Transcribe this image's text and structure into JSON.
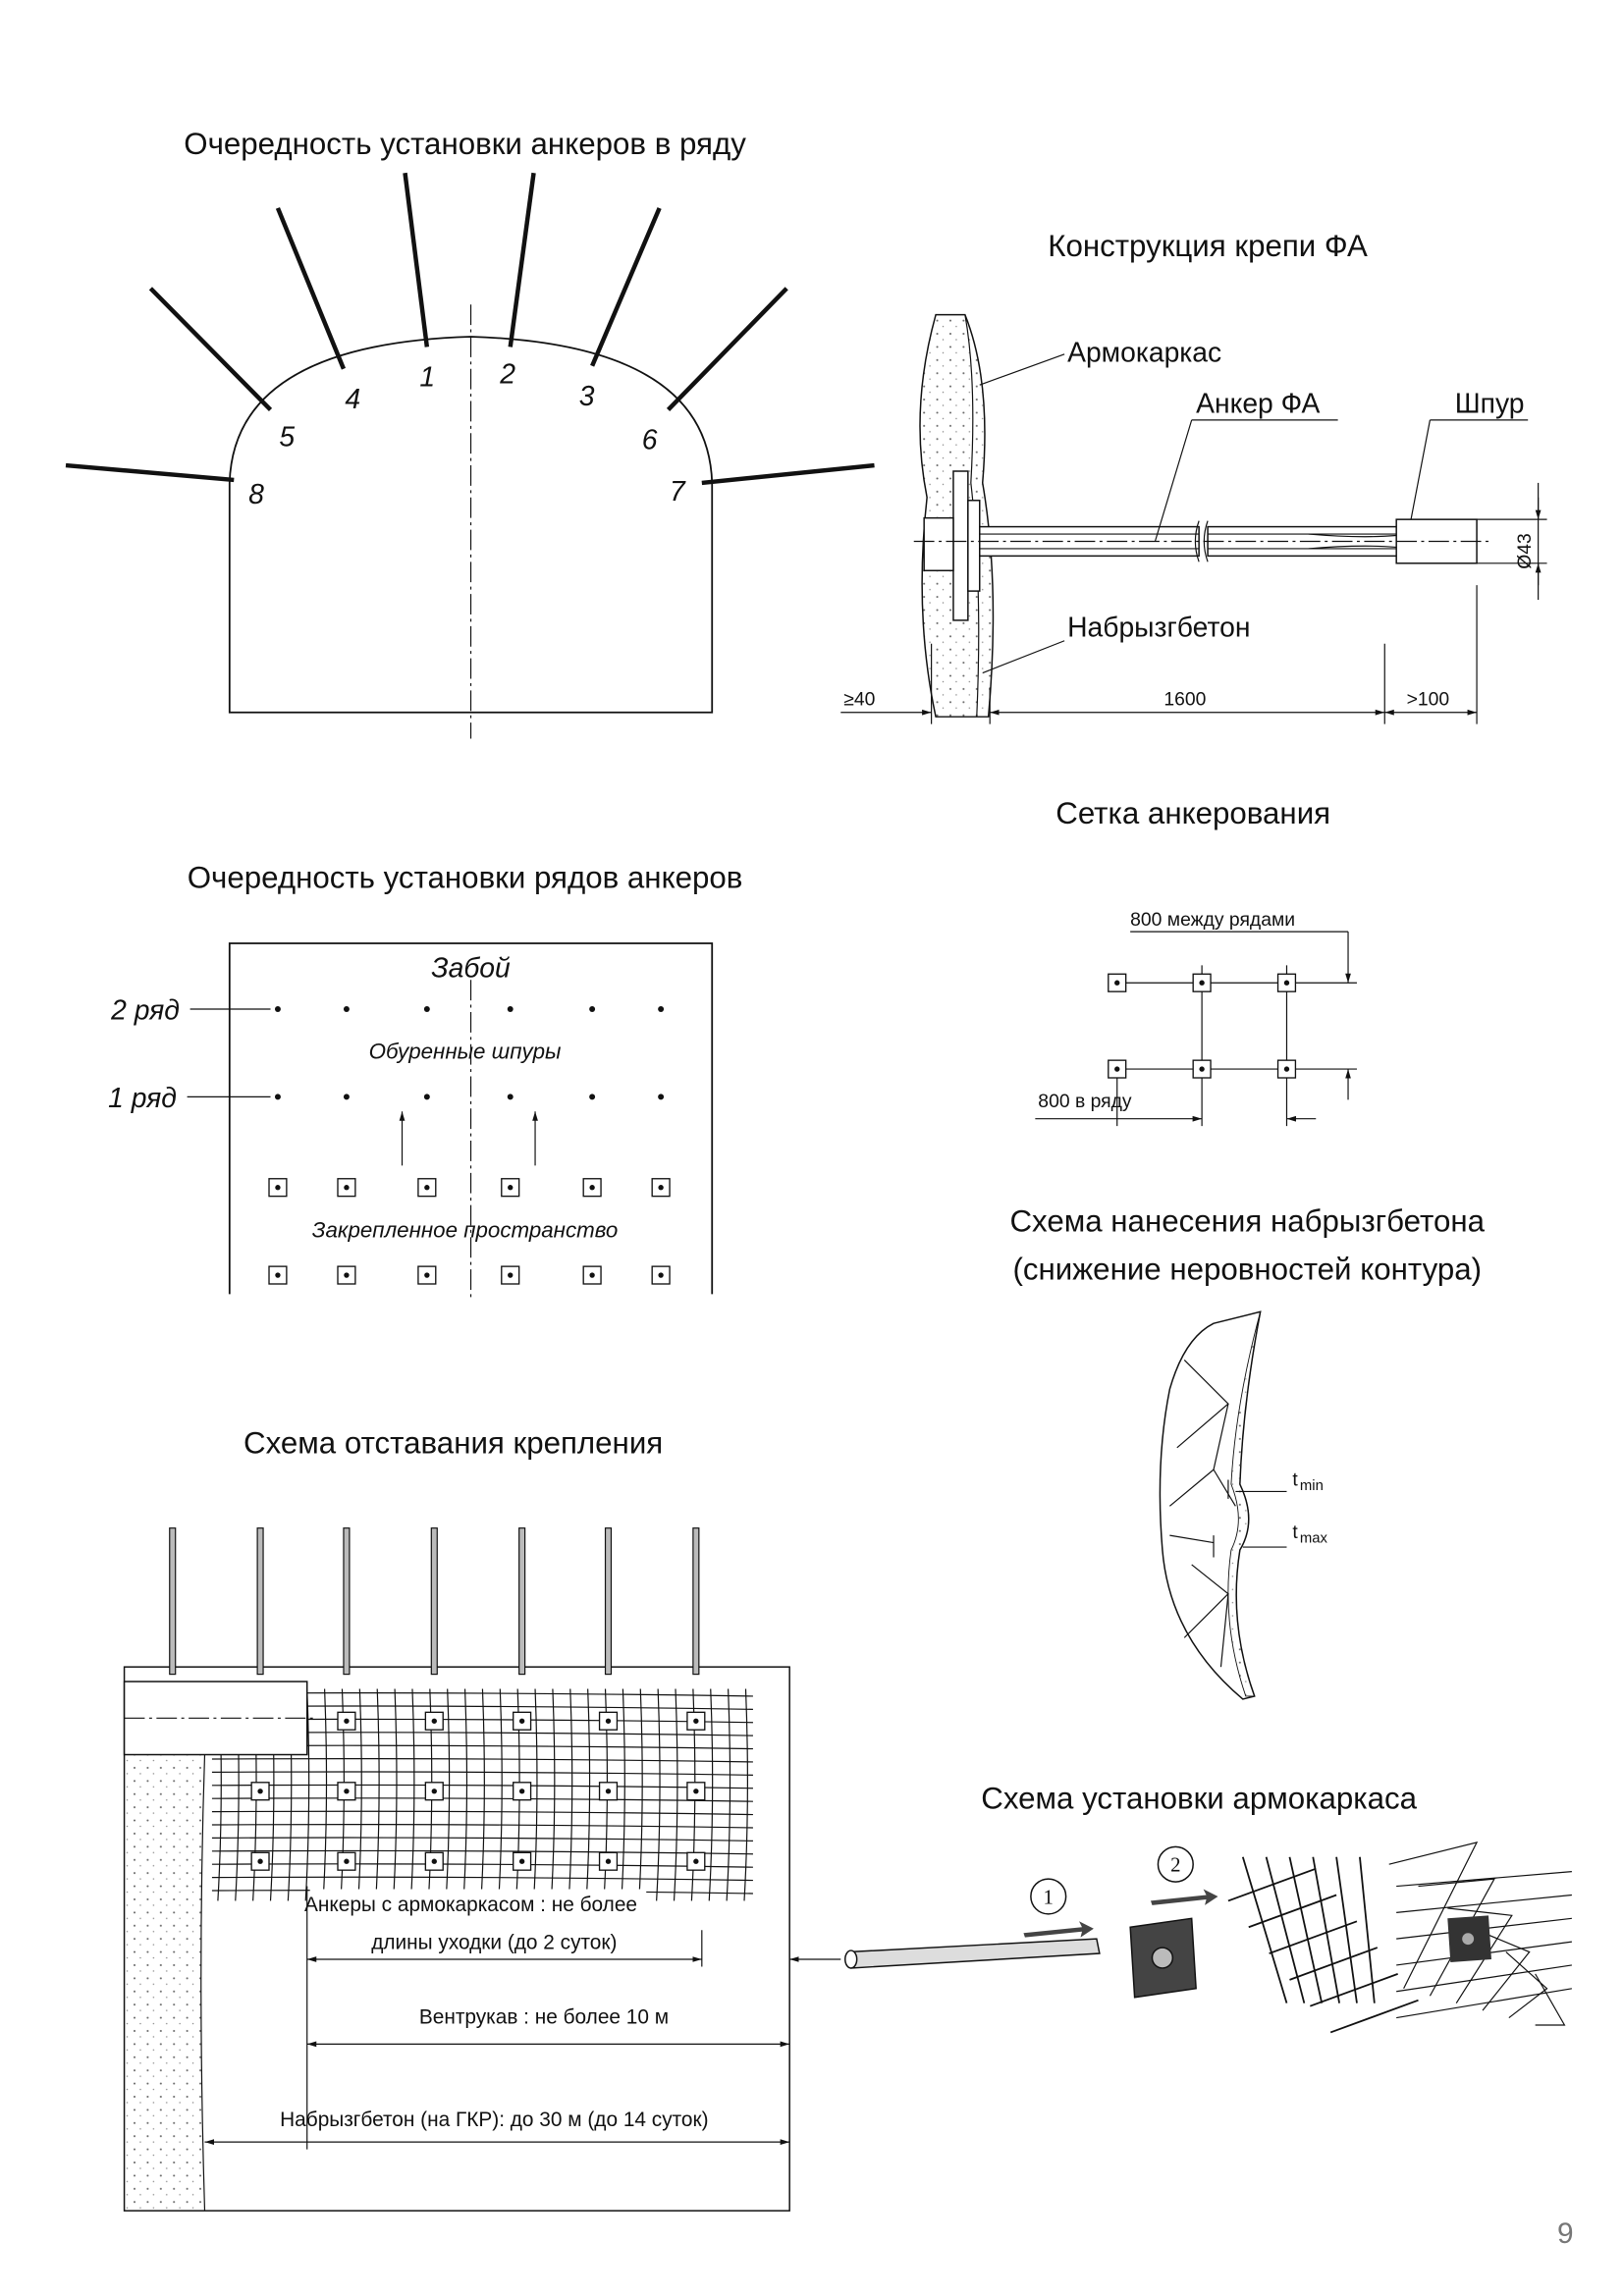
{
  "anchor_sequence_in_row": {
    "title": "Очередность установки анкеров в ряду",
    "numbers": [
      "1",
      "2",
      "3",
      "4",
      "5",
      "6",
      "7",
      "8"
    ]
  },
  "support_design": {
    "title": "Конструкция крепи ФА",
    "labels": {
      "mesh": "Армокаркас",
      "anchor": "Анкер ФА",
      "hole": "Шпур",
      "shotcrete": "Набрызгбетон"
    },
    "dimensions": {
      "diameter": "Ø43",
      "left": "≥40",
      "length": "1600",
      "right": ">100"
    }
  },
  "anchor_grid": {
    "title": "Сетка анкерования",
    "between_rows": "800 между рядами",
    "in_row": "800 в ряду"
  },
  "row_sequence": {
    "title": "Очередность установки рядов анкеров",
    "face": "Забой",
    "row2": "2 ряд",
    "row1": "1 ряд",
    "drilled": "Обуренные шпуры",
    "secured": "Закрепленное пространство"
  },
  "shotcrete_scheme": {
    "title_line1": "Схема нанесения набрызгбетона",
    "title_line2": "(снижение неровностей контура)",
    "t_min": {
      "symbol": "t",
      "index": "min"
    },
    "t_max": {
      "symbol": "t",
      "index": "max"
    }
  },
  "lag_scheme": {
    "title": "Схема отставания крепления",
    "anchors_line1": "Анкеры с армокаркасом : не более",
    "anchors_line2": "длины уходки (до 2 суток)",
    "duct": "Вентрукав : не более 10 м",
    "shotcrete": "Набрызгбетон (на ГКР): до 30 м (до 14 суток)"
  },
  "mesh_install": {
    "title": "Схема установки армокаркаса",
    "steps": [
      "1",
      "2"
    ]
  },
  "page_number": "9"
}
